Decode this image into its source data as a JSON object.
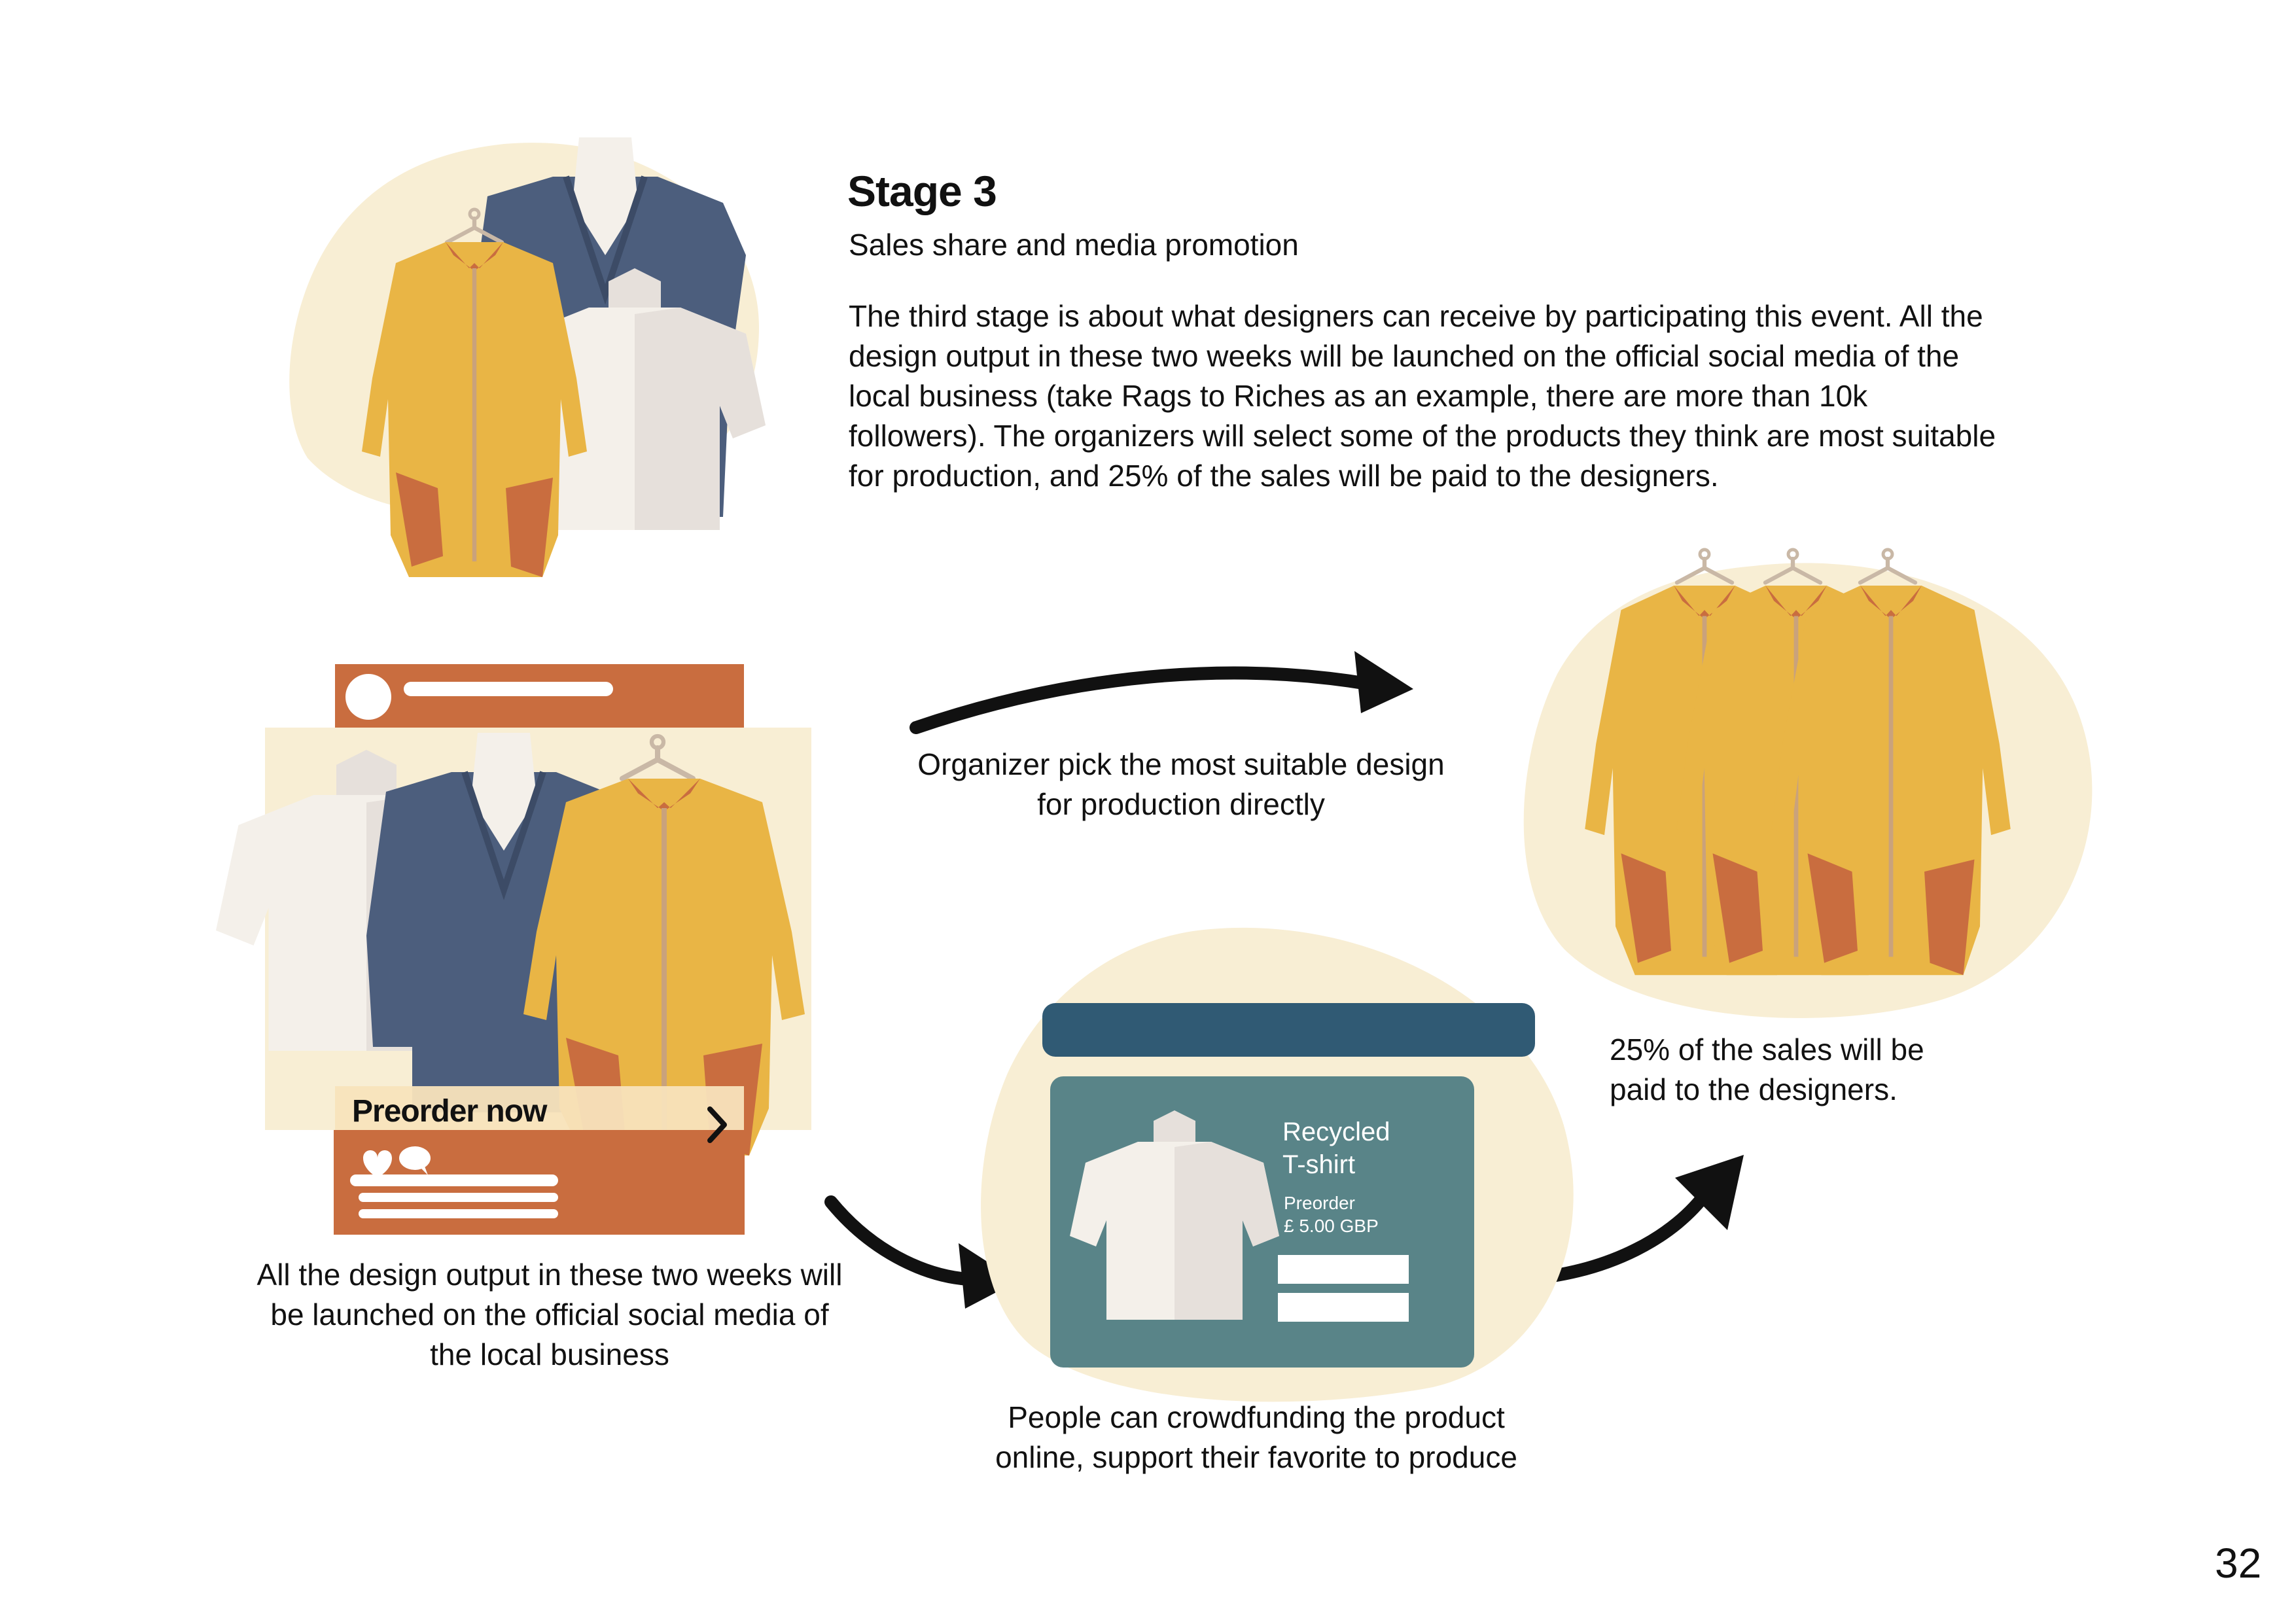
{
  "stage": {
    "title": "Stage 3",
    "subtitle": "Sales share and media promotion",
    "description": "The third stage is about what designers can receive by participating this event. All the design output in these two weeks will be launched on the official social media of the local business (take Rags to Riches as an example, there are more than 10k followers). The organizers will select some of the products they think are most suitable for production, and 25% of the sales will be paid to the designers."
  },
  "flow": {
    "social_caption": "All the design output in these two weeks will be launched on the official social media of the local business",
    "organizer_caption": "Organizer pick the most suitable design for production directly",
    "crowdfunding_caption": "People can crowdfunding the product online, support their favorite to produce",
    "sales_caption": "25% of the sales will be paid to the designers."
  },
  "social_post": {
    "cta_label": "Preorder now",
    "cta_icon": "chevron-right-icon",
    "reaction_icons": [
      "heart-icon",
      "comment-icon"
    ]
  },
  "product_card": {
    "title": "Recycled T-shirt",
    "status": "Preorder",
    "price": "£ 5.00 GBP"
  },
  "page_number": "32",
  "colors": {
    "blob": "#F8EED4",
    "mustard": "#E9B545",
    "rust": "#C96D3F",
    "navy": "#4C5E7D",
    "cream": "#F4F0EA",
    "teal_card": "#598488",
    "dark_teal_bar": "#305A74"
  }
}
